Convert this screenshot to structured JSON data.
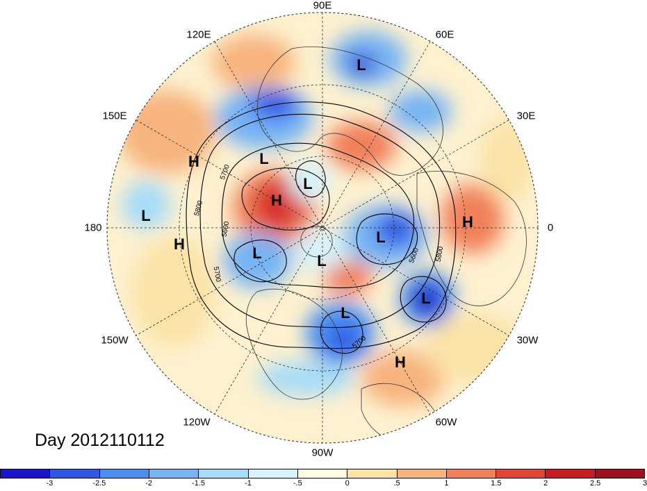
{
  "title": "Day 2012110112",
  "longitude_labels": [
    {
      "text": "90E"
    },
    {
      "text": "60E"
    },
    {
      "text": "30E"
    },
    {
      "text": "0"
    },
    {
      "text": "30W"
    },
    {
      "text": "60W"
    },
    {
      "text": "90W"
    },
    {
      "text": "120W"
    },
    {
      "text": "150W"
    },
    {
      "text": "180"
    },
    {
      "text": "150E"
    },
    {
      "text": "120E"
    }
  ],
  "pressure_centers": [
    "L",
    "L",
    "L",
    "L",
    "L",
    "L",
    "L",
    "L",
    "L",
    "H",
    "H",
    "H",
    "H",
    "H"
  ],
  "contour_labels": [
    "5700",
    "5800",
    "5600",
    "5600",
    "5800",
    "5700",
    "5700"
  ],
  "colorbar": {
    "colors": [
      "#1a14cc",
      "#2f57e6",
      "#4a8ef0",
      "#76b4f4",
      "#a6dcf8",
      "#d6f2fa",
      "#fffae0",
      "#fbe3a8",
      "#f7b47e",
      "#f0805a",
      "#e04538",
      "#c81c24",
      "#a0101c"
    ],
    "ticks": [
      "-3",
      "-2.5",
      "-2",
      "-1.5",
      "-1",
      "-.5",
      "0",
      ".5",
      "1",
      "1.5",
      "2",
      "2.5",
      "3"
    ]
  },
  "legend_colors": {
    "low": "#2f57e6",
    "high": "#e04538",
    "neutral": "#fffae0"
  }
}
